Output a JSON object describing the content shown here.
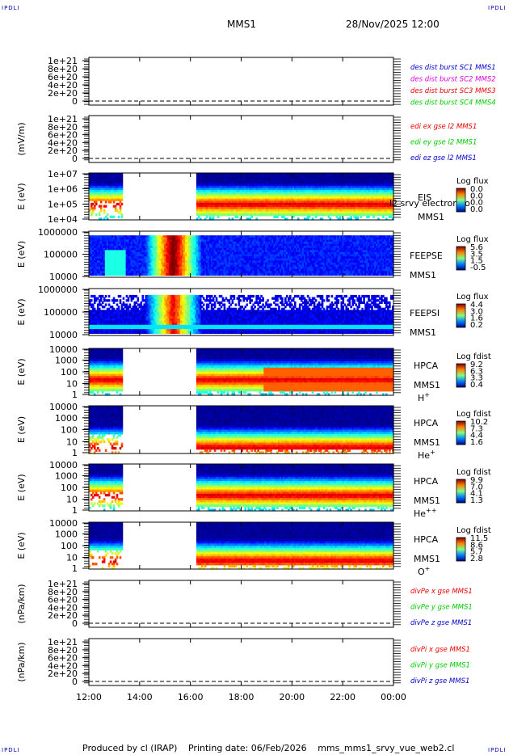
{
  "corner_label": "IPDLI",
  "header": {
    "spacecraft": "MMS1",
    "date": "28/Nov/2025 12:00"
  },
  "footer": {
    "produced_by": "Produced by cl (IRAP)",
    "printing_date": "Printing date: 06/Feb/2026",
    "script": "mms_mms1_srvy_vue_web2.cl"
  },
  "colors": {
    "red": "#ee0000",
    "green": "#00cc00",
    "blue": "#0000cc",
    "magenta": "#dd00dd",
    "black": "#000000"
  },
  "chart_data": [
    {
      "id": "p1",
      "type": "line",
      "ylabel": "",
      "yticks": [
        "1e+21",
        "8e+20",
        "6e+20",
        "4e+20",
        "2e+20",
        "0"
      ],
      "ylim": [
        0,
        1.15e+21
      ],
      "legend": [
        {
          "text": "des dist burst SC1 MMS1",
          "color": "#0000cc"
        },
        {
          "text": "des dist burst SC2 MMS2",
          "color": "#dd00dd"
        },
        {
          "text": "des dist burst SC3 MMS3",
          "color": "#ee0000"
        },
        {
          "text": "des dist burst SC4 MMS4",
          "color": "#00cc00"
        }
      ],
      "series": []
    },
    {
      "id": "p2",
      "type": "line",
      "ylabel": "(mV/m)",
      "yticks": [
        "1e+21",
        "8e+20",
        "6e+20",
        "4e+20",
        "2e+20",
        "0"
      ],
      "ylim": [
        0,
        1.15e+21
      ],
      "legend": [
        {
          "text": "edi ex gse l2 MMS1",
          "color": "#ee0000"
        },
        {
          "text": "edi ey gse l2 MMS1",
          "color": "#00cc00"
        },
        {
          "text": "edi ez gse l2 MMS1",
          "color": "#0000cc"
        }
      ],
      "series": []
    },
    {
      "id": "p3",
      "type": "heatmap",
      "ylabel": "E (eV)",
      "yticks": [
        "1e+07",
        "1e+06",
        "1e+05",
        "1e+04"
      ],
      "ylim": [
        10000,
        10000000
      ],
      "instrument": [
        "EIS",
        "MMS1"
      ],
      "colorbar_title": "Log flux",
      "colorbar_ticks": [
        "0.0",
        "0.0",
        "0.0",
        "0.0"
      ],
      "overlay_text": "l2 srvy electron to"
    },
    {
      "id": "p4",
      "type": "heatmap",
      "ylabel": "E (eV)",
      "yticks": [
        "1000000",
        "100000",
        "10000"
      ],
      "ylim": [
        10000,
        1000000
      ],
      "instrument": [
        "FEEPSE",
        "MMS1"
      ],
      "colorbar_title": "Log flux",
      "colorbar_ticks": [
        "5.6",
        "3.5",
        "1.5",
        "-0.5"
      ]
    },
    {
      "id": "p5",
      "type": "heatmap",
      "ylabel": "E (eV)",
      "yticks": [
        "1000000",
        "100000",
        "10000"
      ],
      "ylim": [
        10000,
        1000000
      ],
      "instrument": [
        "FEEPSI",
        "MMS1"
      ],
      "colorbar_title": "Log flux",
      "colorbar_ticks": [
        "4.4",
        "3.0",
        "1.6",
        "0.2"
      ]
    },
    {
      "id": "p6",
      "type": "heatmap",
      "ylabel": "E (eV)",
      "yticks": [
        "10000",
        "1000",
        "100",
        "10",
        "1"
      ],
      "ylim": [
        1,
        40000
      ],
      "instrument": [
        "HPCA",
        "MMS1"
      ],
      "species": "H",
      "species_charge": "+",
      "colorbar_title": "Log fdist",
      "colorbar_ticks": [
        "9.2",
        "6.3",
        "3.3",
        "0.4"
      ]
    },
    {
      "id": "p7",
      "type": "heatmap",
      "ylabel": "E (eV)",
      "yticks": [
        "10000",
        "1000",
        "100",
        "10",
        "1"
      ],
      "ylim": [
        1,
        40000
      ],
      "instrument": [
        "HPCA",
        "MMS1"
      ],
      "species": "He",
      "species_charge": "+",
      "colorbar_title": "Log fdist",
      "colorbar_ticks": [
        "10.2",
        "7.3",
        "4.4",
        "1.6"
      ]
    },
    {
      "id": "p8",
      "type": "heatmap",
      "ylabel": "E (eV)",
      "yticks": [
        "10000",
        "1000",
        "100",
        "10",
        "1"
      ],
      "ylim": [
        1,
        40000
      ],
      "instrument": [
        "HPCA",
        "MMS1"
      ],
      "species": "He",
      "species_charge": "++",
      "colorbar_title": "Log fdist",
      "colorbar_ticks": [
        "9.9",
        "7.0",
        "4.1",
        "1.3"
      ]
    },
    {
      "id": "p9",
      "type": "heatmap",
      "ylabel": "E (eV)",
      "yticks": [
        "10000",
        "1000",
        "100",
        "10",
        "1"
      ],
      "ylim": [
        1,
        40000
      ],
      "instrument": [
        "HPCA",
        "MMS1"
      ],
      "species": "O",
      "species_charge": "+",
      "colorbar_title": "Log fdist",
      "colorbar_ticks": [
        "11.5",
        "8.6",
        "5.7",
        "2.8"
      ]
    },
    {
      "id": "p10",
      "type": "line",
      "ylabel": "(nPa/km)",
      "yticks": [
        "1e+21",
        "8e+20",
        "6e+20",
        "4e+20",
        "2e+20",
        "0"
      ],
      "ylim": [
        0,
        1.15e+21
      ],
      "legend": [
        {
          "text": "divPe x gse MMS1",
          "color": "#ee0000"
        },
        {
          "text": "divPe y gse MMS1",
          "color": "#00cc00"
        },
        {
          "text": "divPe z gse MMS1",
          "color": "#0000cc"
        }
      ],
      "series": []
    },
    {
      "id": "p11",
      "type": "line",
      "ylabel": "(nPa/km)",
      "yticks": [
        "1e+21",
        "8e+20",
        "6e+20",
        "4e+20",
        "2e+20",
        "0"
      ],
      "ylim": [
        0,
        1.15e+21
      ],
      "legend": [
        {
          "text": "divPi x gse MMS1",
          "color": "#ee0000"
        },
        {
          "text": "divPi y gse MMS1",
          "color": "#00cc00"
        },
        {
          "text": "divPi z gse MMS1",
          "color": "#0000cc"
        }
      ],
      "series": []
    }
  ],
  "time_axis": {
    "ticks": [
      "12:00",
      "14:00",
      "16:00",
      "18:00",
      "20:00",
      "22:00",
      "00:00"
    ],
    "range_hours": [
      12,
      24
    ],
    "gaps_hours": {
      "hpca": [
        13.3,
        16.2
      ]
    },
    "bursts_hours": {
      "feeps": [
        14.3,
        16.3
      ]
    }
  }
}
